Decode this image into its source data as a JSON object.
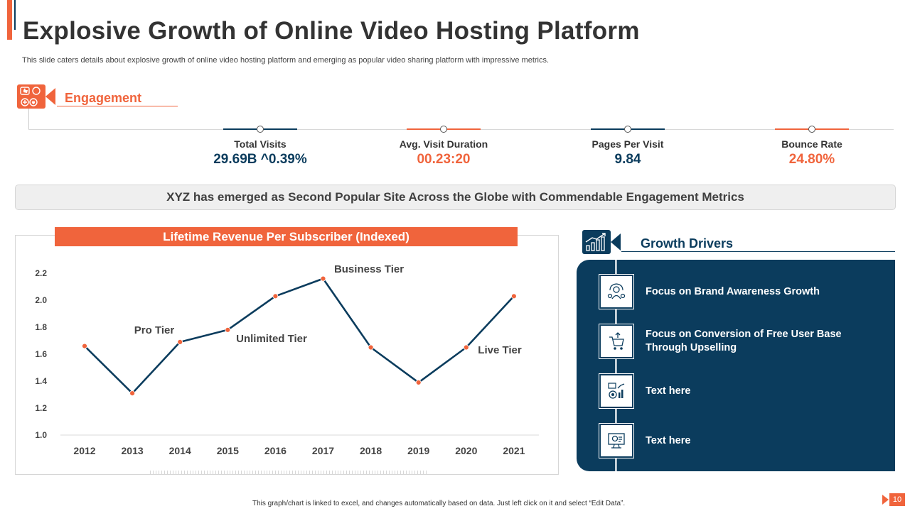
{
  "header": {
    "title": "Explosive Growth of Online Video Hosting Platform",
    "subtitle": "This slide caters details about explosive growth of online video hosting platform and emerging  as popular video sharing platform with impressive metrics."
  },
  "engagement": {
    "label": "Engagement",
    "icon": "social-engagement-icon",
    "metrics": [
      {
        "label": "Total Visits",
        "value": "29.69B ^0.39%",
        "color": "#0b3c5d"
      },
      {
        "label": "Avg. Visit Duration",
        "value": "00.23:20",
        "color": "#f0643c"
      },
      {
        "label": "Pages Per Visit",
        "value": "9.84",
        "color": "#0b3c5d"
      },
      {
        "label": "Bounce Rate",
        "value": "24.80%",
        "color": "#f0643c"
      }
    ]
  },
  "banner": {
    "text": "XYZ has emerged as Second Popular Site Across the Globe with Commendable Engagement Metrics"
  },
  "chart_data": {
    "type": "line",
    "title": "Lifetime Revenue Per Subscriber (Indexed)",
    "categories": [
      "2012",
      "2013",
      "2014",
      "2015",
      "2016",
      "2017",
      "2018",
      "2019",
      "2020",
      "2021"
    ],
    "values": [
      1.66,
      1.31,
      1.69,
      1.78,
      2.03,
      2.16,
      1.65,
      1.39,
      1.65,
      2.03
    ],
    "ylim": [
      1.0,
      2.2
    ],
    "yticks": [
      "1.0",
      "1.2",
      "1.4",
      "1.6",
      "1.8",
      "2.0",
      "2.2"
    ],
    "annotations": [
      {
        "text": "Pro Tier",
        "x": "2013"
      },
      {
        "text": "Unlimited Tier",
        "x": "2015"
      },
      {
        "text": "Business Tier",
        "x": "2017"
      },
      {
        "text": "Live Tier",
        "x": "2020"
      }
    ],
    "line_color": "#0b3c5d",
    "marker_color": "#f0643c",
    "grid": false,
    "legend": "none"
  },
  "growth": {
    "label": "Growth Drivers",
    "icon": "growth-chart-icon",
    "items": [
      {
        "text": "Focus on Brand Awareness Growth",
        "icon": "brand-awareness-icon"
      },
      {
        "text": "Focus on Conversion of Free User Base Through Upselling",
        "icon": "conversion-cart-icon"
      },
      {
        "text": "Text here",
        "icon": "analytics-icon"
      },
      {
        "text": "Text here",
        "icon": "monitor-settings-icon"
      }
    ]
  },
  "footer": {
    "note": "This graph/chart is linked to excel, and changes automatically based on data. Just left click on it and select “Edit Data”.",
    "page": "10"
  }
}
